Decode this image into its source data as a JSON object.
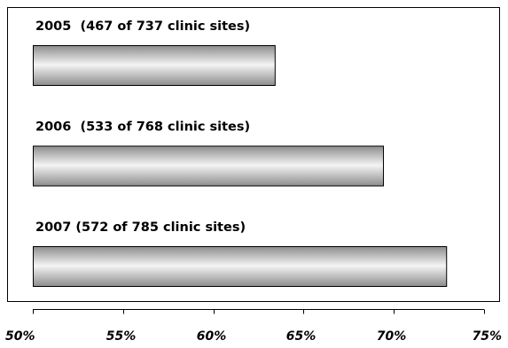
{
  "chart_data": {
    "type": "bar",
    "orientation": "horizontal",
    "categories": [
      "2005  (467 of 737 clinic sites)",
      "2006  (533 of 768 clinic sites)",
      "2007 (572 of 785 clinic sites)"
    ],
    "values": [
      63.4,
      69.4,
      72.9
    ],
    "value_unit": "%",
    "xlim": [
      50,
      75
    ],
    "x_ticks": [
      "50%",
      "55%",
      "60%",
      "65%",
      "70%",
      "75%"
    ],
    "x_tick_values": [
      50,
      55,
      60,
      65,
      70,
      75
    ],
    "title": "",
    "xlabel": "",
    "ylabel": "",
    "grid": false,
    "legend": "none",
    "bar_fill": "gradient-gray",
    "colors": {
      "bar_light": "#f4f4f4",
      "bar_dark": "#8c8c8c",
      "axis": "#000000"
    }
  }
}
